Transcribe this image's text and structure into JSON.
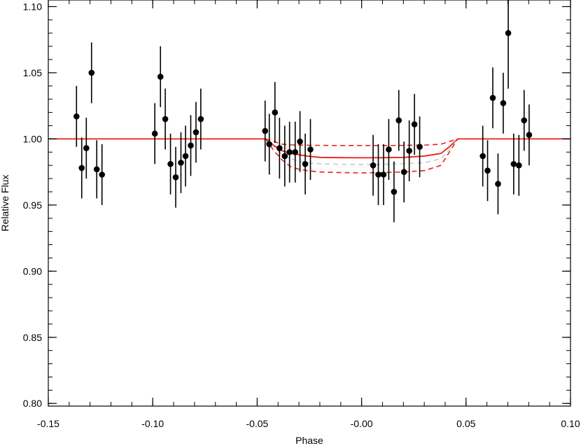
{
  "chart_data": {
    "type": "scatter",
    "title": "",
    "xlabel": "Phase",
    "ylabel": "Relative Flux",
    "xlim": [
      -0.15,
      0.1
    ],
    "ylim": [
      0.798,
      1.105
    ],
    "x_ticks": [
      -0.15,
      -0.1,
      -0.05,
      0.0,
      0.05,
      0.1
    ],
    "x_tick_labels": [
      "-0.15",
      "-0.10",
      "-0.05",
      "-0.00",
      "0.05",
      "0.10"
    ],
    "y_ticks": [
      0.8,
      0.85,
      0.9,
      0.95,
      1.0,
      1.05,
      1.1
    ],
    "y_tick_labels": [
      "0.80",
      "0.85",
      "0.90",
      "0.95",
      "1.00",
      "1.05",
      "1.10"
    ],
    "grid": false,
    "legend": "none",
    "colors": {
      "data": "#000000",
      "model": "#e8201a",
      "model_alt": "#c8c8c8"
    },
    "series": [
      {
        "kind": "points_with_errorbars",
        "points": [
          {
            "x": -0.1365,
            "y": 1.017,
            "err": 0.023
          },
          {
            "x": -0.134,
            "y": 0.978,
            "err": 0.023
          },
          {
            "x": -0.1318,
            "y": 0.993,
            "err": 0.023
          },
          {
            "x": -0.1293,
            "y": 1.05,
            "err": 0.023
          },
          {
            "x": -0.1268,
            "y": 0.977,
            "err": 0.022
          },
          {
            "x": -0.1243,
            "y": 0.973,
            "err": 0.023
          },
          {
            "x": -0.099,
            "y": 1.004,
            "err": 0.023
          },
          {
            "x": -0.0963,
            "y": 1.047,
            "err": 0.023
          },
          {
            "x": -0.094,
            "y": 1.015,
            "err": 0.023
          },
          {
            "x": -0.0915,
            "y": 0.981,
            "err": 0.023
          },
          {
            "x": -0.089,
            "y": 0.971,
            "err": 0.023
          },
          {
            "x": -0.0865,
            "y": 0.982,
            "err": 0.023
          },
          {
            "x": -0.0843,
            "y": 0.987,
            "err": 0.023
          },
          {
            "x": -0.0818,
            "y": 0.995,
            "err": 0.023
          },
          {
            "x": -0.0793,
            "y": 1.005,
            "err": 0.023
          },
          {
            "x": -0.077,
            "y": 1.015,
            "err": 0.023
          },
          {
            "x": -0.0462,
            "y": 1.006,
            "err": 0.023
          },
          {
            "x": -0.0442,
            "y": 0.996,
            "err": 0.023
          },
          {
            "x": -0.0415,
            "y": 1.02,
            "err": 0.023
          },
          {
            "x": -0.0393,
            "y": 0.993,
            "err": 0.023
          },
          {
            "x": -0.0368,
            "y": 0.987,
            "err": 0.023
          },
          {
            "x": -0.0345,
            "y": 0.99,
            "err": 0.023
          },
          {
            "x": -0.0318,
            "y": 0.99,
            "err": 0.023
          },
          {
            "x": -0.0295,
            "y": 0.998,
            "err": 0.023
          },
          {
            "x": -0.027,
            "y": 0.981,
            "err": 0.023
          },
          {
            "x": -0.0245,
            "y": 0.992,
            "err": 0.023
          },
          {
            "x": 0.0055,
            "y": 0.98,
            "err": 0.023
          },
          {
            "x": 0.008,
            "y": 0.973,
            "err": 0.023
          },
          {
            "x": 0.0105,
            "y": 0.973,
            "err": 0.023
          },
          {
            "x": 0.013,
            "y": 0.992,
            "err": 0.023
          },
          {
            "x": 0.0155,
            "y": 0.96,
            "err": 0.023
          },
          {
            "x": 0.0178,
            "y": 1.014,
            "err": 0.023
          },
          {
            "x": 0.0203,
            "y": 0.975,
            "err": 0.023
          },
          {
            "x": 0.0228,
            "y": 0.991,
            "err": 0.023
          },
          {
            "x": 0.0253,
            "y": 1.011,
            "err": 0.023
          },
          {
            "x": 0.0278,
            "y": 0.994,
            "err": 0.023
          },
          {
            "x": 0.058,
            "y": 0.987,
            "err": 0.023
          },
          {
            "x": 0.0603,
            "y": 0.976,
            "err": 0.023
          },
          {
            "x": 0.0628,
            "y": 1.031,
            "err": 0.023
          },
          {
            "x": 0.0653,
            "y": 0.966,
            "err": 0.023
          },
          {
            "x": 0.0678,
            "y": 1.027,
            "err": 0.023
          },
          {
            "x": 0.0702,
            "y": 1.08,
            "err": 0.042
          },
          {
            "x": 0.0728,
            "y": 0.981,
            "err": 0.023
          },
          {
            "x": 0.0753,
            "y": 0.98,
            "err": 0.023
          },
          {
            "x": 0.0778,
            "y": 1.014,
            "err": 0.023
          },
          {
            "x": 0.0802,
            "y": 1.003,
            "err": 0.023
          }
        ]
      },
      {
        "kind": "model_solid",
        "color": "#e8201a",
        "x": [
          -0.15,
          -0.046,
          -0.042,
          -0.038,
          -0.034,
          -0.03,
          -0.026,
          -0.02,
          -0.01,
          0.0,
          0.01,
          0.02,
          0.03,
          0.038,
          0.042,
          0.046,
          0.1
        ],
        "y": [
          1.0,
          1.0,
          0.995,
          0.991,
          0.989,
          0.988,
          0.987,
          0.986,
          0.9858,
          0.9857,
          0.9858,
          0.986,
          0.987,
          0.989,
          0.994,
          1.0,
          1.0
        ]
      },
      {
        "kind": "model_dashed_gray",
        "color": "#c8c8c8",
        "x": [
          -0.046,
          -0.042,
          -0.038,
          -0.034,
          -0.03,
          -0.026,
          -0.02,
          -0.01,
          0.0,
          0.01,
          0.02,
          0.03,
          0.038,
          0.042,
          0.046
        ],
        "y": [
          1.0,
          0.994,
          0.988,
          0.985,
          0.983,
          0.982,
          0.9812,
          0.9808,
          0.9806,
          0.9808,
          0.9812,
          0.982,
          0.985,
          0.992,
          1.0
        ]
      },
      {
        "kind": "model_dashed_upper",
        "color": "#e8201a",
        "x": [
          -0.046,
          -0.042,
          -0.038,
          -0.034,
          -0.03,
          -0.026,
          -0.02,
          -0.01,
          0.0,
          0.01,
          0.02,
          0.03,
          0.038,
          0.042,
          0.046
        ],
        "y": [
          1.0,
          0.998,
          0.996,
          0.9955,
          0.9953,
          0.9952,
          0.9951,
          0.995,
          0.995,
          0.995,
          0.9951,
          0.9953,
          0.996,
          0.998,
          1.0
        ]
      },
      {
        "kind": "model_dashed_lower",
        "color": "#e8201a",
        "x": [
          -0.046,
          -0.042,
          -0.038,
          -0.034,
          -0.03,
          -0.026,
          -0.02,
          -0.01,
          0.0,
          0.01,
          0.02,
          0.03,
          0.038,
          0.042,
          0.046
        ],
        "y": [
          1.0,
          0.991,
          0.984,
          0.979,
          0.977,
          0.976,
          0.975,
          0.9745,
          0.9743,
          0.9745,
          0.975,
          0.976,
          0.98,
          0.99,
          1.0
        ]
      }
    ]
  }
}
